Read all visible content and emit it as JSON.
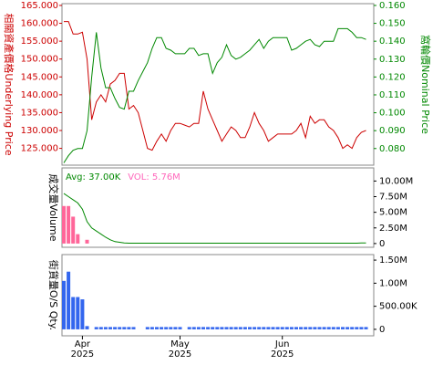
{
  "chart_data": [
    {
      "type": "line",
      "y_label": "相關資產價格Underlying Price",
      "y2_label": "窩輪價Nominal Price",
      "ylim": [
        120.3,
        165.5
      ],
      "yticks": [
        {
          "value": 125,
          "label": "125.000"
        },
        {
          "value": 130,
          "label": "130.000"
        },
        {
          "value": 135,
          "label": "135.000"
        },
        {
          "value": 140,
          "label": "140.000"
        },
        {
          "value": 145,
          "label": "145.000"
        },
        {
          "value": 150,
          "label": "150.000"
        },
        {
          "value": 155,
          "label": "155.000"
        },
        {
          "value": 160,
          "label": "160.000"
        },
        {
          "value": 165,
          "label": "165.000"
        }
      ],
      "y2lim": [
        0.0707,
        0.161
      ],
      "y2ticks": [
        {
          "value": 0.08,
          "label": "0.080"
        },
        {
          "value": 0.09,
          "label": "0.090"
        },
        {
          "value": 0.1,
          "label": "0.100"
        },
        {
          "value": 0.11,
          "label": "0.110"
        },
        {
          "value": 0.12,
          "label": "0.120"
        },
        {
          "value": 0.13,
          "label": "0.130"
        },
        {
          "value": 0.14,
          "label": "0.140"
        },
        {
          "value": 0.15,
          "label": "0.150"
        },
        {
          "value": 0.16,
          "label": "0.160"
        }
      ],
      "series": [
        {
          "color": "#cc0000",
          "values": [
            160.5,
            160.5,
            157,
            157,
            157.5,
            150,
            133,
            138,
            140,
            138,
            143,
            144,
            146,
            146,
            136,
            137,
            135,
            130,
            125,
            124.5,
            127,
            129,
            127,
            130,
            132,
            132,
            131.5,
            131,
            132,
            132,
            141,
            136,
            133,
            130,
            127,
            129,
            131,
            130,
            128,
            128,
            131,
            135,
            132,
            130,
            127,
            128,
            129,
            129,
            129,
            129,
            130,
            132,
            128,
            134,
            132,
            133,
            133,
            131,
            130,
            128,
            125,
            126,
            125,
            128,
            129.5,
            130
          ]
        },
        {
          "color": "#008800",
          "axis": "y2",
          "values": [
            0.072,
            0.076,
            0.079,
            0.08,
            0.08,
            0.09,
            0.12,
            0.145,
            0.125,
            0.114,
            0.114,
            0.108,
            0.103,
            0.102,
            0.112,
            0.112,
            0.118,
            0.123,
            0.128,
            0.136,
            0.142,
            0.142,
            0.136,
            0.135,
            0.133,
            0.133,
            0.133,
            0.136,
            0.136,
            0.132,
            0.133,
            0.133,
            0.122,
            0.128,
            0.131,
            0.138,
            0.132,
            0.13,
            0.131,
            0.133,
            0.135,
            0.138,
            0.141,
            0.136,
            0.14,
            0.142,
            0.142,
            0.142,
            0.142,
            0.135,
            0.136,
            0.138,
            0.14,
            0.141,
            0.138,
            0.137,
            0.14,
            0.14,
            0.14,
            0.147,
            0.147,
            0.147,
            0.145,
            0.142,
            0.142,
            0.141
          ]
        }
      ]
    },
    {
      "type": "bar",
      "y_label": "成交量Volume",
      "annotations": [
        {
          "text": "Avg: 37.00K",
          "color": "#008800"
        },
        {
          "text": "VOL: 5.76M",
          "color": "#ff66bb"
        }
      ],
      "ylim": [
        -600000,
        12100000
      ],
      "yticks": [
        0,
        {
          "value": 2500000,
          "label": "2.50M"
        },
        {
          "value": 5000000,
          "label": "5.00M"
        },
        {
          "value": 7500000,
          "label": "7.50M"
        },
        {
          "value": 10000000,
          "label": "10.00M"
        }
      ],
      "series": [
        {
          "type": "bar",
          "color": "#ff6699",
          "values": [
            6000000,
            6000000,
            4300000,
            1500000,
            0,
            600000,
            0,
            0,
            0,
            0,
            0,
            0,
            0,
            0,
            0,
            0,
            0,
            0,
            0,
            0,
            0,
            0,
            0,
            0,
            0,
            0,
            0,
            0,
            0,
            0,
            0,
            0,
            0,
            0,
            0,
            0,
            0,
            0,
            0,
            0,
            0,
            0,
            0,
            0,
            0,
            0,
            0,
            0,
            0,
            0,
            0,
            0,
            0,
            0,
            0,
            0,
            0,
            0,
            0,
            0,
            0,
            0,
            0,
            0,
            0,
            0
          ]
        },
        {
          "type": "line",
          "color": "#008800",
          "values": [
            8000000,
            7500000,
            7000000,
            6500000,
            5500000,
            3500000,
            2500000,
            2000000,
            1500000,
            1000000,
            600000,
            300000,
            200000,
            100000,
            50000,
            50000,
            50000,
            50000,
            50000,
            50000,
            50000,
            50000,
            50000,
            50000,
            50000,
            50000,
            50000,
            50000,
            50000,
            50000,
            50000,
            50000,
            50000,
            50000,
            50000,
            50000,
            50000,
            50000,
            50000,
            50000,
            50000,
            50000,
            50000,
            50000,
            50000,
            50000,
            50000,
            50000,
            50000,
            50000,
            50000,
            50000,
            50000,
            50000,
            50000,
            50000,
            50000,
            50000,
            50000,
            50000,
            50000,
            50000,
            50000,
            50000,
            80000,
            100000
          ]
        }
      ]
    },
    {
      "type": "bar",
      "y_label": "街貨量O/S Qty.",
      "ylim": [
        -140000,
        1620000
      ],
      "yticks": [
        0,
        {
          "value": 500000,
          "label": "500.00K"
        },
        {
          "value": 1000000,
          "label": "1.00M"
        },
        {
          "value": 1500000,
          "label": "1.50M"
        }
      ],
      "categories": [
        null,
        null,
        null,
        null,
        "Apr 2025",
        null,
        null,
        null,
        null,
        null,
        null,
        null,
        null,
        null,
        null,
        null,
        null,
        null,
        null,
        null,
        null,
        null,
        null,
        null,
        null,
        "May 2025",
        null,
        null,
        null,
        null,
        null,
        null,
        null,
        null,
        null,
        null,
        null,
        null,
        null,
        null,
        null,
        null,
        null,
        null,
        null,
        null,
        null,
        "Jun 2025",
        null,
        null,
        null,
        null,
        null,
        null,
        null,
        null,
        null,
        null,
        null,
        null,
        null,
        null,
        null,
        null,
        null,
        null
      ],
      "series": [
        {
          "type": "bar",
          "color": "#3366ee",
          "values": [
            1050000,
            1250000,
            700000,
            700000,
            650000,
            70000,
            0,
            50000,
            50000,
            50000,
            50000,
            50000,
            50000,
            50000,
            50000,
            50000,
            0,
            0,
            50000,
            50000,
            50000,
            50000,
            50000,
            50000,
            50000,
            50000,
            0,
            50000,
            50000,
            50000,
            50000,
            50000,
            50000,
            50000,
            50000,
            50000,
            50000,
            50000,
            50000,
            50000,
            50000,
            50000,
            50000,
            50000,
            50000,
            50000,
            50000,
            50000,
            50000,
            50000,
            50000,
            50000,
            50000,
            50000,
            50000,
            50000,
            50000,
            50000,
            50000,
            50000,
            50000,
            50000,
            50000,
            50000,
            50000,
            50000
          ]
        }
      ]
    }
  ]
}
